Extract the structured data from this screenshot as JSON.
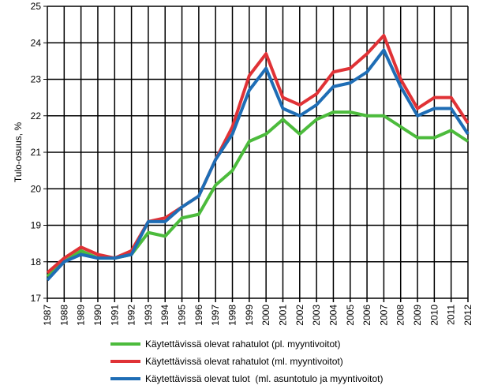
{
  "chart_data": {
    "type": "line",
    "title": "",
    "xlabel": "",
    "ylabel": "Tulo-osuus, %",
    "ylim": [
      17,
      25
    ],
    "yticks": [
      17,
      18,
      19,
      20,
      21,
      22,
      23,
      24,
      25
    ],
    "grid": true,
    "legend_placement": "bottom",
    "x": [
      1987,
      1988,
      1989,
      1990,
      1991,
      1992,
      1993,
      1994,
      1995,
      1996,
      1997,
      1998,
      1999,
      2000,
      2001,
      2002,
      2003,
      2004,
      2005,
      2006,
      2007,
      2008,
      2009,
      2010,
      2011,
      2012
    ],
    "series": [
      {
        "name": "Käytettävissä olevat rahatulot (pl. myyntivoitot)",
        "color": "#4cbb3c",
        "values": [
          17.6,
          18.0,
          18.3,
          18.1,
          18.1,
          18.2,
          18.8,
          18.7,
          19.2,
          19.3,
          20.1,
          20.5,
          21.3,
          21.5,
          21.9,
          21.5,
          21.9,
          22.1,
          22.1,
          22.0,
          22.0,
          21.7,
          21.4,
          21.4,
          21.6,
          21.3
        ]
      },
      {
        "name": "Käytettävissä olevat rahatulot (ml. myyntivoitot)",
        "color": "#e03236",
        "values": [
          17.7,
          18.1,
          18.4,
          18.2,
          18.1,
          18.3,
          19.1,
          19.2,
          19.5,
          19.8,
          20.8,
          21.7,
          23.1,
          23.7,
          22.5,
          22.3,
          22.6,
          23.2,
          23.3,
          23.7,
          24.2,
          23.0,
          22.2,
          22.5,
          22.5,
          21.8
        ]
      },
      {
        "name": "Käytettävissä olevat tulot  (ml. asuntotulo ja myyntivoitot)",
        "color": "#1e6db5",
        "values": [
          17.5,
          18.0,
          18.2,
          18.1,
          18.1,
          18.2,
          19.1,
          19.1,
          19.5,
          19.8,
          20.8,
          21.5,
          22.7,
          23.3,
          22.2,
          22.0,
          22.3,
          22.8,
          22.9,
          23.2,
          23.8,
          22.8,
          22.0,
          22.2,
          22.2,
          21.5
        ]
      }
    ]
  }
}
